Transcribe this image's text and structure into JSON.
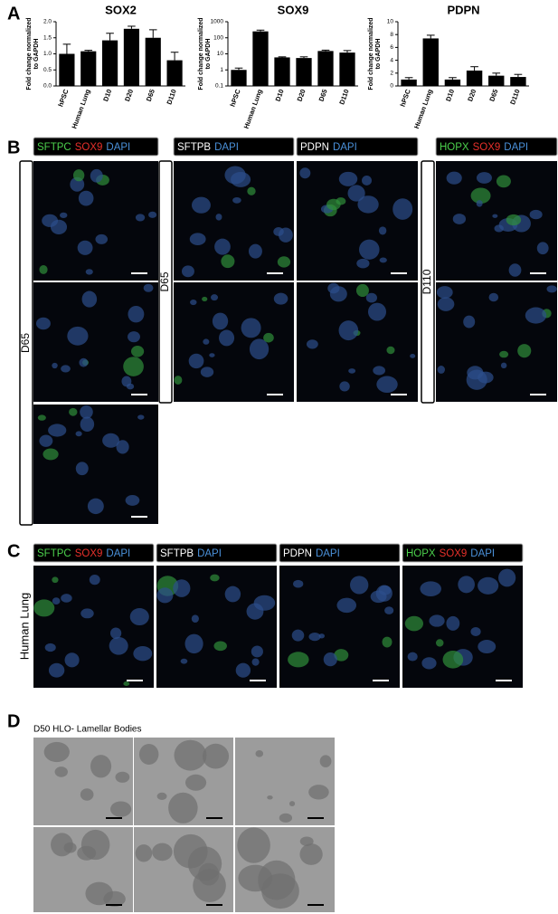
{
  "chart_data": [
    {
      "type": "bar",
      "title": "SOX2",
      "ylabel": [
        "Fold change normalized",
        "to GAPDH"
      ],
      "categories": [
        "hPSC",
        "Human Lung",
        "D10",
        "D20",
        "D65",
        "D110"
      ],
      "values": [
        1.0,
        1.08,
        1.42,
        1.78,
        1.5,
        0.8
      ],
      "errors": [
        0.3,
        0.03,
        0.22,
        0.08,
        0.25,
        0.25
      ],
      "color": "#000000",
      "log_scale": false,
      "ylim": [
        0,
        2
      ],
      "yticks": [
        {
          "value": 0,
          "label": "0.0"
        },
        {
          "value": 0.5,
          "label": "0.5"
        },
        {
          "value": 1,
          "label": "1.0"
        },
        {
          "value": 1.5,
          "label": "1.5"
        },
        {
          "value": 2,
          "label": "2.0"
        }
      ]
    },
    {
      "type": "bar",
      "title": "SOX9",
      "ylabel": [
        "Fold change normalized",
        "to GAPDH"
      ],
      "categories": [
        "hPSC",
        "Human Lung",
        "D10",
        "D20",
        "D65",
        "D110"
      ],
      "values": [
        1.0,
        250,
        6,
        5.5,
        15,
        12
      ],
      "errors": [
        0.3,
        50,
        0.5,
        1,
        2,
        4
      ],
      "color": "#000000",
      "log_scale": true,
      "ylim": [
        0.1,
        1000
      ],
      "yticks": [
        0.1,
        1,
        10,
        100,
        1000
      ]
    },
    {
      "type": "bar",
      "title": "PDPN",
      "ylabel": [
        "Fold change normalized",
        "to GAPDH"
      ],
      "categories": [
        "hPSC",
        "Human Lung",
        "D10",
        "D20",
        "D65",
        "D110"
      ],
      "values": [
        1.0,
        7.4,
        1.0,
        2.4,
        1.6,
        1.4
      ],
      "errors": [
        0.3,
        0.5,
        0.3,
        0.6,
        0.4,
        0.4
      ],
      "color": "#000000",
      "log_scale": false,
      "ylim": [
        0,
        10
      ],
      "yticks": [
        0,
        2,
        4,
        6,
        8,
        10
      ]
    }
  ],
  "panel_letters": [
    "A",
    "B",
    "C",
    "D"
  ],
  "panel_b": {
    "headers": [
      [
        {
          "text": "SFTPC",
          "color": "#4cd04c"
        },
        {
          "text": "SOX9",
          "color": "#e8302a"
        },
        {
          "text": "DAPI",
          "color": "#4a90d9"
        }
      ],
      [
        {
          "text": "SFTPB",
          "color": "#ffffff"
        },
        {
          "text": "DAPI",
          "color": "#4a90d9"
        }
      ],
      [
        {
          "text": "PDPN",
          "color": "#ffffff"
        },
        {
          "text": "DAPI",
          "color": "#4a90d9"
        }
      ],
      [
        {
          "text": "HOPX",
          "color": "#4cd04c"
        },
        {
          "text": "SOX9",
          "color": "#e8302a"
        },
        {
          "text": "DAPI",
          "color": "#4a90d9"
        }
      ]
    ],
    "side_labels": [
      "D65",
      "D65",
      "D110"
    ]
  },
  "panel_c": {
    "headers": [
      [
        {
          "text": "SFTPC",
          "color": "#4cd04c"
        },
        {
          "text": "SOX9",
          "color": "#e8302a"
        },
        {
          "text": "DAPI",
          "color": "#4a90d9"
        }
      ],
      [
        {
          "text": "SFTPB",
          "color": "#ffffff"
        },
        {
          "text": "DAPI",
          "color": "#4a90d9"
        }
      ],
      [
        {
          "text": "PDPN",
          "color": "#ffffff"
        },
        {
          "text": "DAPI",
          "color": "#4a90d9"
        }
      ],
      [
        {
          "text": "HOPX",
          "color": "#4cd04c"
        },
        {
          "text": "SOX9",
          "color": "#e8302a"
        },
        {
          "text": "DAPI",
          "color": "#4a90d9"
        }
      ]
    ],
    "side_label": "Human Lung"
  },
  "panel_d": {
    "title": "D50 HLO- Lamellar Bodies"
  }
}
